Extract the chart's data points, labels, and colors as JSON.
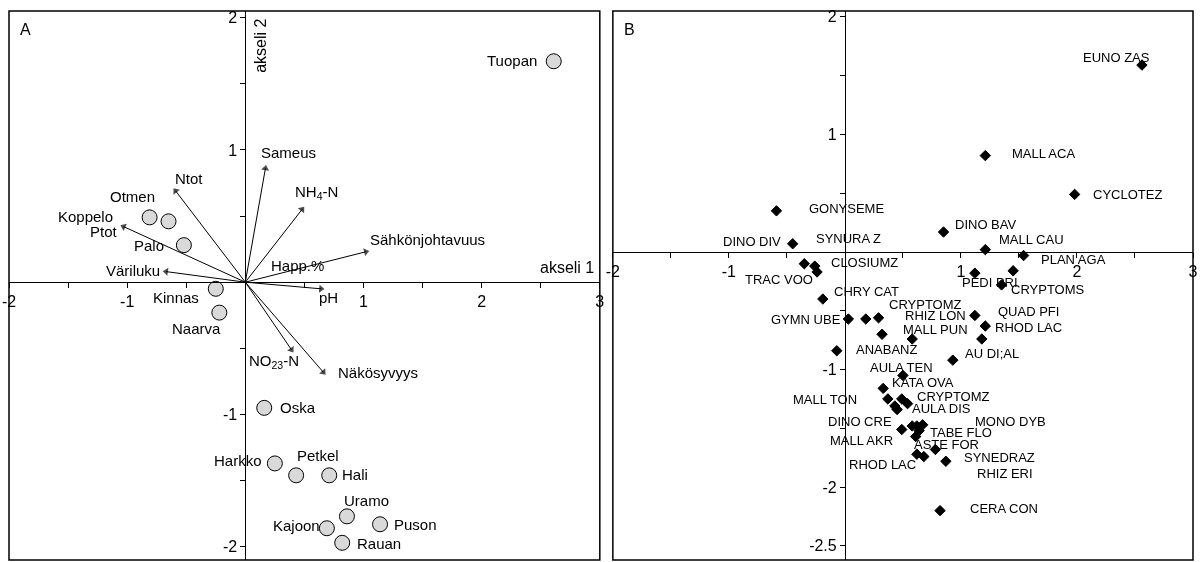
{
  "chart_data": [
    {
      "type": "scatter",
      "title": "A",
      "xlabel": "akseli 1",
      "ylabel": "akseli 2",
      "xlim": [
        -2,
        3
      ],
      "ylim": [
        -2.1,
        2.05
      ],
      "xticks": [
        -2,
        {
          "value": -1.5,
          "label": null
        },
        -1,
        {
          "value": -0.5,
          "label": null
        },
        {
          "value": 0.5,
          "label": null
        },
        1,
        {
          "value": 1.5,
          "label": null
        },
        2,
        {
          "value": 2.5,
          "label": null
        },
        3
      ],
      "yticks": [
        -2,
        {
          "value": -1.5,
          "label": null
        },
        -1,
        {
          "value": -0.5,
          "label": null
        },
        {
          "value": 0.5,
          "label": null
        },
        1,
        {
          "value": 1.5,
          "label": null
        },
        2
      ],
      "series": [
        {
          "type": "line",
          "color": "#000000",
          "line_style": "solid",
          "x": [
            0,
            0.17,
            null,
            0,
            0.48,
            null,
            0,
            -0.59,
            null,
            0,
            -1.03,
            null,
            0,
            -0.67,
            null,
            0,
            1.02,
            null,
            0,
            0.64,
            null,
            0,
            0.39,
            null,
            0,
            0.66
          ],
          "values": [
            0,
            0.86,
            null,
            0,
            0.55,
            null,
            0,
            0.69,
            null,
            0,
            0.42,
            null,
            0,
            0.08,
            null,
            0,
            0.23,
            null,
            0,
            -0.05,
            null,
            0,
            -0.51,
            null,
            0,
            -0.68
          ]
        },
        {
          "color": "#d9d9d9",
          "marker": "circle",
          "x": [
            2.61,
            -0.81,
            -0.65,
            -0.52,
            -0.25,
            -0.22,
            0.16,
            0.25,
            0.43,
            0.71,
            0.86,
            1.14,
            0.69,
            0.82
          ],
          "values": [
            1.67,
            0.49,
            0.46,
            0.28,
            -0.05,
            -0.23,
            -0.95,
            -1.37,
            -1.46,
            -1.46,
            -1.77,
            -1.83,
            -1.86,
            -1.97
          ]
        }
      ],
      "annotations": [
        {
          "text": "Tuopan",
          "x": 2.61,
          "y": 1.67
        },
        {
          "text": "Sameus",
          "x": 0.17,
          "y": 0.86
        },
        {
          "text": "NH$_{4}$-N",
          "x": 0.48,
          "y": 0.55
        },
        {
          "text": "Ntot",
          "x": -0.59,
          "y": 0.69
        },
        {
          "text": "Otmen",
          "x": -0.65,
          "y": 0.46
        },
        {
          "text": "Koppelo",
          "x": -0.81,
          "y": 0.49
        },
        {
          "text": "Ptot",
          "x": -1.03,
          "y": 0.42
        },
        {
          "text": "Palo",
          "x": -0.52,
          "y": 0.28
        },
        {
          "text": "Väriluku",
          "x": -0.67,
          "y": 0.08
        },
        {
          "text": "Happ.%",
          "x": 0,
          "y": 0
        },
        {
          "text": "Sähkönjohtavuus",
          "x": 1.02,
          "y": 0.23
        },
        {
          "text": "Kinnas",
          "x": -0.25,
          "y": -0.05
        },
        {
          "text": "Naarva",
          "x": -0.22,
          "y": -0.23
        },
        {
          "text": "pH",
          "x": 0.64,
          "y": -0.05
        },
        {
          "text": "NO$_{23}$-N",
          "x": 0.39,
          "y": -0.51
        },
        {
          "text": "Näkösyvyys",
          "x": 0.66,
          "y": -0.68
        },
        {
          "text": "Oska",
          "x": 0.16,
          "y": -0.95
        },
        {
          "text": "Harkko",
          "x": 0.25,
          "y": -1.37
        },
        {
          "text": "Petkel",
          "x": 0.43,
          "y": -1.46
        },
        {
          "text": "Hali",
          "x": 0.71,
          "y": -1.46
        },
        {
          "text": "Uramo",
          "x": 0.86,
          "y": -1.77
        },
        {
          "text": "Puson",
          "x": 1.14,
          "y": -1.83
        },
        {
          "text": "Kajoon",
          "x": 0.69,
          "y": -1.86
        },
        {
          "text": "Rauan",
          "x": 0.82,
          "y": -1.97
        }
      ]
    },
    {
      "type": "scatter",
      "title": "B",
      "xlim": [
        -2,
        3
      ],
      "ylim": [
        -2.62,
        2.05
      ],
      "xticks": [
        -2,
        {
          "value": -1.5,
          "label": null
        },
        -1,
        {
          "value": -0.5,
          "label": null
        },
        {
          "value": 0.5,
          "label": null
        },
        1,
        {
          "value": 1.5,
          "label": null
        },
        2,
        {
          "value": 2.5,
          "label": null
        },
        3
      ],
      "yticks": [
        -2.5,
        -2,
        {
          "value": -1.5,
          "label": null
        },
        -1,
        {
          "value": -0.5,
          "label": null
        },
        {
          "value": 0.5,
          "label": null
        },
        1,
        {
          "value": 1.5,
          "label": null
        },
        2
      ],
      "series": [
        {
          "color": "#000000",
          "marker": "diamond",
          "x": [
            2.56,
            1.21,
            1.98,
            -0.59,
            0.85,
            -0.45,
            1.21,
            1.54,
            -0.35,
            -0.26,
            -0.24,
            1.12,
            1.45,
            1.35,
            -0.19,
            0.03,
            0.18,
            0.29,
            0.32,
            0.58,
            1.12,
            1.21,
            1.18,
            -0.07,
            0.93,
            0.5,
            0.33,
            0.37,
            0.49,
            0.43,
            0.45,
            0.54,
            0.58,
            0.62,
            0.67,
            0.64,
            0.49,
            0.61,
            0.78,
            0.62,
            0.68,
            0.87,
            0.82
          ],
          "values": [
            1.59,
            0.82,
            0.49,
            0.35,
            0.17,
            0.07,
            0.02,
            -0.03,
            -0.1,
            -0.12,
            -0.17,
            -0.18,
            -0.16,
            -0.28,
            -0.4,
            -0.57,
            -0.57,
            -0.56,
            -0.7,
            -0.74,
            -0.54,
            -0.63,
            -0.74,
            -0.84,
            -0.92,
            -1.05,
            -1.16,
            -1.25,
            -1.25,
            -1.31,
            -1.34,
            -1.29,
            -1.48,
            -1.48,
            -1.47,
            -1.52,
            -1.51,
            -1.57,
            -1.68,
            -1.72,
            -1.74,
            -1.78,
            -2.2
          ]
        }
      ],
      "annotations": [
        {
          "text": "EUNO ZAS",
          "x": 2.56,
          "y": 1.59
        },
        {
          "text": "MALL ACA",
          "x": 1.21,
          "y": 0.82
        },
        {
          "text": "CYCLOTEZ",
          "x": 1.98,
          "y": 0.49
        },
        {
          "text": "GONYSEME",
          "x": -0.59,
          "y": 0.35
        },
        {
          "text": "DINO BAV",
          "x": 0.85,
          "y": 0.17
        },
        {
          "text": "SYNURA Z",
          "x": -0.45,
          "y": 0.07
        },
        {
          "text": "MALL CAU",
          "x": 1.21,
          "y": 0.02
        },
        {
          "text": "PLAN AGA",
          "x": 1.54,
          "y": -0.03
        },
        {
          "text": "DINO DIV",
          "x": -0.35,
          "y": -0.1
        },
        {
          "text": "CLOSIUMZ",
          "x": -0.26,
          "y": -0.12
        },
        {
          "text": "TRAC VOO",
          "x": -0.24,
          "y": -0.17
        },
        {
          "text": "PEDI PRI",
          "x": 1.12,
          "y": -0.18
        },
        {
          "text": "CRYPTOMS",
          "x": 1.35,
          "y": -0.28
        },
        {
          "text": "CHRY CAT",
          "x": -0.19,
          "y": -0.4
        },
        {
          "text": "CRYPTOMZ",
          "x": 0.29,
          "y": -0.56
        },
        {
          "text": "GYMN UBE",
          "x": 0.03,
          "y": -0.57
        },
        {
          "text": "RHIZ LON",
          "x": 0.58,
          "y": -0.74
        },
        {
          "text": "QUAD PFI",
          "x": 1.12,
          "y": -0.54
        },
        {
          "text": "MALL PUN",
          "x": 0.32,
          "y": -0.7
        },
        {
          "text": "RHOD LAC",
          "x": 1.21,
          "y": -0.63
        },
        {
          "text": "ANABANZ",
          "x": -0.07,
          "y": -0.84
        },
        {
          "text": "AU DI;AL",
          "x": 0.93,
          "y": -0.92
        },
        {
          "text": "AULA TEN",
          "x": 0.5,
          "y": -1.05
        },
        {
          "text": "KATA OVA",
          "x": 0.33,
          "y": -1.16
        },
        {
          "text": "CRYPTOMZ",
          "x": 0.49,
          "y": -1.25
        },
        {
          "text": "MALL TON",
          "x": 0.37,
          "y": -1.25
        },
        {
          "text": "AULA DIS",
          "x": 0.54,
          "y": -1.29
        },
        "MONO DYB",
        {
          "text": "DINO CRE",
          "x": 0.49,
          "y": -1.51
        },
        {
          "text": "TABE FLO",
          "x": 0.64,
          "y": -1.52
        },
        {
          "text": "MALL AKR",
          "x": 0.61,
          "y": -1.57
        },
        {
          "text": "ASTE FOR",
          "x": 0.78,
          "y": -1.68
        },
        {
          "text": "SYNEDRAZ",
          "x": 0.87,
          "y": -1.78
        },
        {
          "text": "RHOD LAC",
          "x": 0.62,
          "y": -1.72
        },
        {
          "text": "RHIZ ERI",
          "x": 0.87,
          "y": -1.78
        },
        {
          "text": "CERA CON",
          "x": 0.82,
          "y": -2.2
        }
      ]
    }
  ]
}
